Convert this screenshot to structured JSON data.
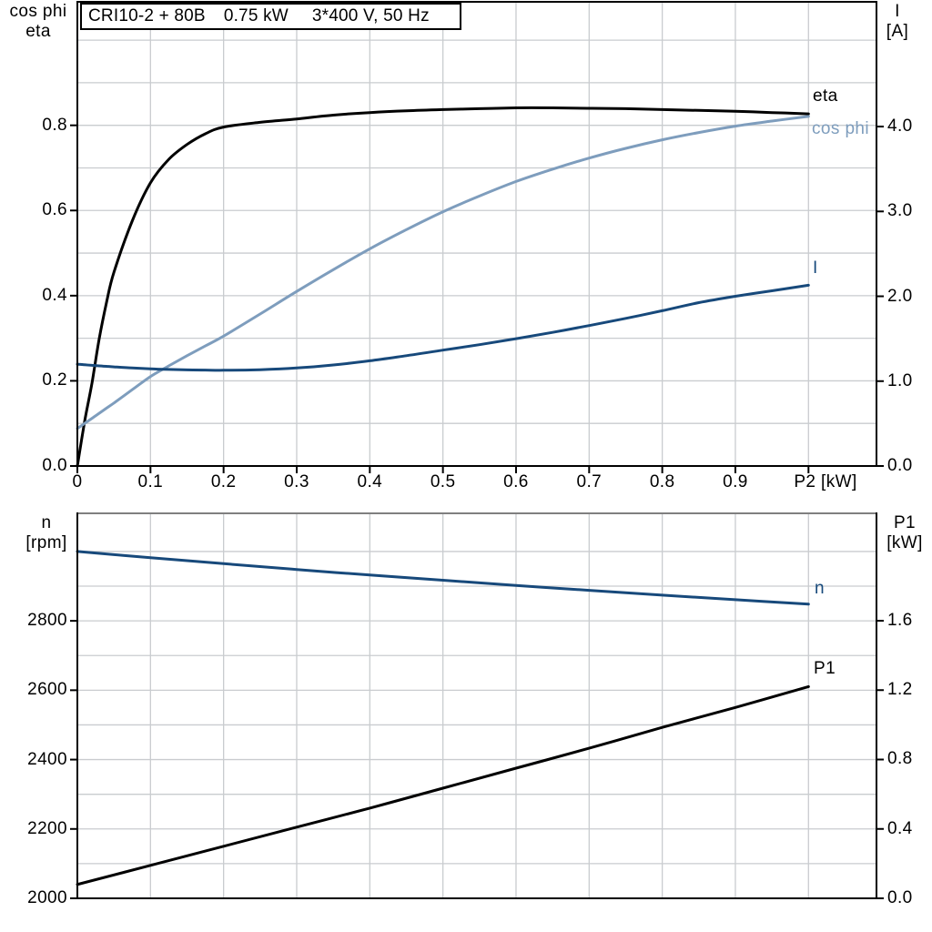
{
  "title": {
    "part1": "CRI10-2 + 80B",
    "part2": "0.75 kW",
    "part3": "3*400 V, 50 Hz",
    "full": "CRI10-2 + 80B  0.75 kW  3*400 V, 50 Hz"
  },
  "colors": {
    "eta": "#000000",
    "cos_phi": "#7e9dbd",
    "current": "#17497b",
    "n": "#17497b",
    "p1": "#000000",
    "grid": "#c9cccf",
    "axis": "#000000",
    "bottom_chart_top_border": "#7f7f7f"
  },
  "chart_data": [
    {
      "type": "line",
      "title": "CRI10-2 + 80B  0.75 kW  3*400 V, 50 Hz",
      "xlabel": "P2 [kW]",
      "xlim": [
        0,
        1.093
      ],
      "x_axis": {
        "tick_labels": [
          "0",
          "0.1",
          "0.2",
          "0.3",
          "0.4",
          "0.5",
          "0.6",
          "0.7",
          "0.8",
          "0.9"
        ],
        "unlabeled_tick_values": [
          1.0
        ],
        "grid_values": [
          0.1,
          0.2,
          0.3,
          0.4,
          0.5,
          0.6,
          0.7,
          0.8,
          0.9,
          1.0
        ]
      },
      "left_axis": {
        "title_lines": [
          "cos phi",
          "eta"
        ],
        "tick_labels": [
          "0.0",
          "0.2",
          "0.4",
          "0.6",
          "0.8"
        ],
        "lim": [
          0,
          1.09
        ],
        "grid_values": [
          0.1,
          0.2,
          0.3,
          0.4,
          0.5,
          0.6,
          0.7,
          0.8,
          0.9,
          1.0
        ]
      },
      "right_axis": {
        "title_lines": [
          "I",
          "[A]"
        ],
        "tick_labels": [
          "0.0",
          "1.0",
          "2.0",
          "3.0",
          "4.0"
        ],
        "lim": [
          0,
          5.47
        ]
      },
      "x": [
        0,
        0.01,
        0.02,
        0.03,
        0.04,
        0.05,
        0.075,
        0.1,
        0.125,
        0.15,
        0.175,
        0.2,
        0.25,
        0.3,
        0.35,
        0.4,
        0.45,
        0.5,
        0.55,
        0.6,
        0.65,
        0.7,
        0.75,
        0.8,
        0.85,
        0.9,
        0.95,
        1.0
      ],
      "series": [
        {
          "name": "eta",
          "label": "eta",
          "axis": "left",
          "color_key": "eta",
          "values": [
            0,
            0.105,
            0.195,
            0.3,
            0.385,
            0.455,
            0.575,
            0.665,
            0.72,
            0.755,
            0.78,
            0.796,
            0.807,
            0.815,
            0.824,
            0.83,
            0.834,
            0.837,
            0.839,
            0.841,
            0.841,
            0.84,
            0.839,
            0.837,
            0.835,
            0.833,
            0.83,
            0.827
          ]
        },
        {
          "name": "cos phi",
          "label": "cos phi",
          "axis": "left",
          "color_key": "cos_phi",
          "values": [
            0.088,
            0.1,
            0.112,
            0.124,
            0.136,
            0.148,
            0.179,
            0.21,
            0.235,
            0.259,
            0.282,
            0.305,
            0.357,
            0.41,
            0.461,
            0.51,
            0.555,
            0.597,
            0.634,
            0.668,
            0.697,
            0.723,
            0.746,
            0.766,
            0.783,
            0.798,
            0.81,
            0.821
          ]
        },
        {
          "name": "I",
          "label": "I",
          "axis": "right",
          "color_key": "current",
          "values": [
            1.2,
            1.193,
            1.186,
            1.18,
            1.174,
            1.168,
            1.155,
            1.145,
            1.138,
            1.133,
            1.13,
            1.128,
            1.135,
            1.155,
            1.19,
            1.24,
            1.3,
            1.365,
            1.43,
            1.5,
            1.575,
            1.655,
            1.74,
            1.83,
            1.925,
            2.0,
            2.065,
            2.13
          ]
        }
      ]
    },
    {
      "type": "line",
      "xlabel": "",
      "xlim": [
        0,
        1.093
      ],
      "x_axis": {
        "tick_labels": [],
        "unlabeled_tick_values": [],
        "grid_values": [
          0.1,
          0.2,
          0.3,
          0.4,
          0.5,
          0.6,
          0.7,
          0.8,
          0.9,
          1.0
        ]
      },
      "left_axis": {
        "title_lines": [
          "n",
          "[rpm]"
        ],
        "tick_labels": [
          "2000",
          "2200",
          "2400",
          "2600",
          "2800"
        ],
        "lim": [
          2000,
          3110
        ],
        "grid_values": [
          2100,
          2200,
          2300,
          2400,
          2500,
          2600,
          2700,
          2800,
          2900,
          3000
        ]
      },
      "right_axis": {
        "title_lines": [
          "P1",
          "[kW]"
        ],
        "tick_labels": [
          "0.0",
          "0.4",
          "0.8",
          "1.2",
          "1.6"
        ],
        "lim": [
          0,
          2.219
        ]
      },
      "x": [
        0,
        0.1,
        0.2,
        0.3,
        0.4,
        0.5,
        0.6,
        0.7,
        0.8,
        0.9,
        1.0
      ],
      "series": [
        {
          "name": "n",
          "label": "n",
          "axis": "left",
          "color_key": "n",
          "values": [
            3000,
            2982,
            2965,
            2948,
            2932,
            2917,
            2902,
            2888,
            2874,
            2861,
            2848
          ]
        },
        {
          "name": "P1",
          "label": "P1",
          "axis": "right",
          "color_key": "p1",
          "values": [
            0.08,
            0.19,
            0.3,
            0.41,
            0.52,
            0.635,
            0.75,
            0.865,
            0.985,
            1.1,
            1.22
          ]
        }
      ]
    }
  ]
}
